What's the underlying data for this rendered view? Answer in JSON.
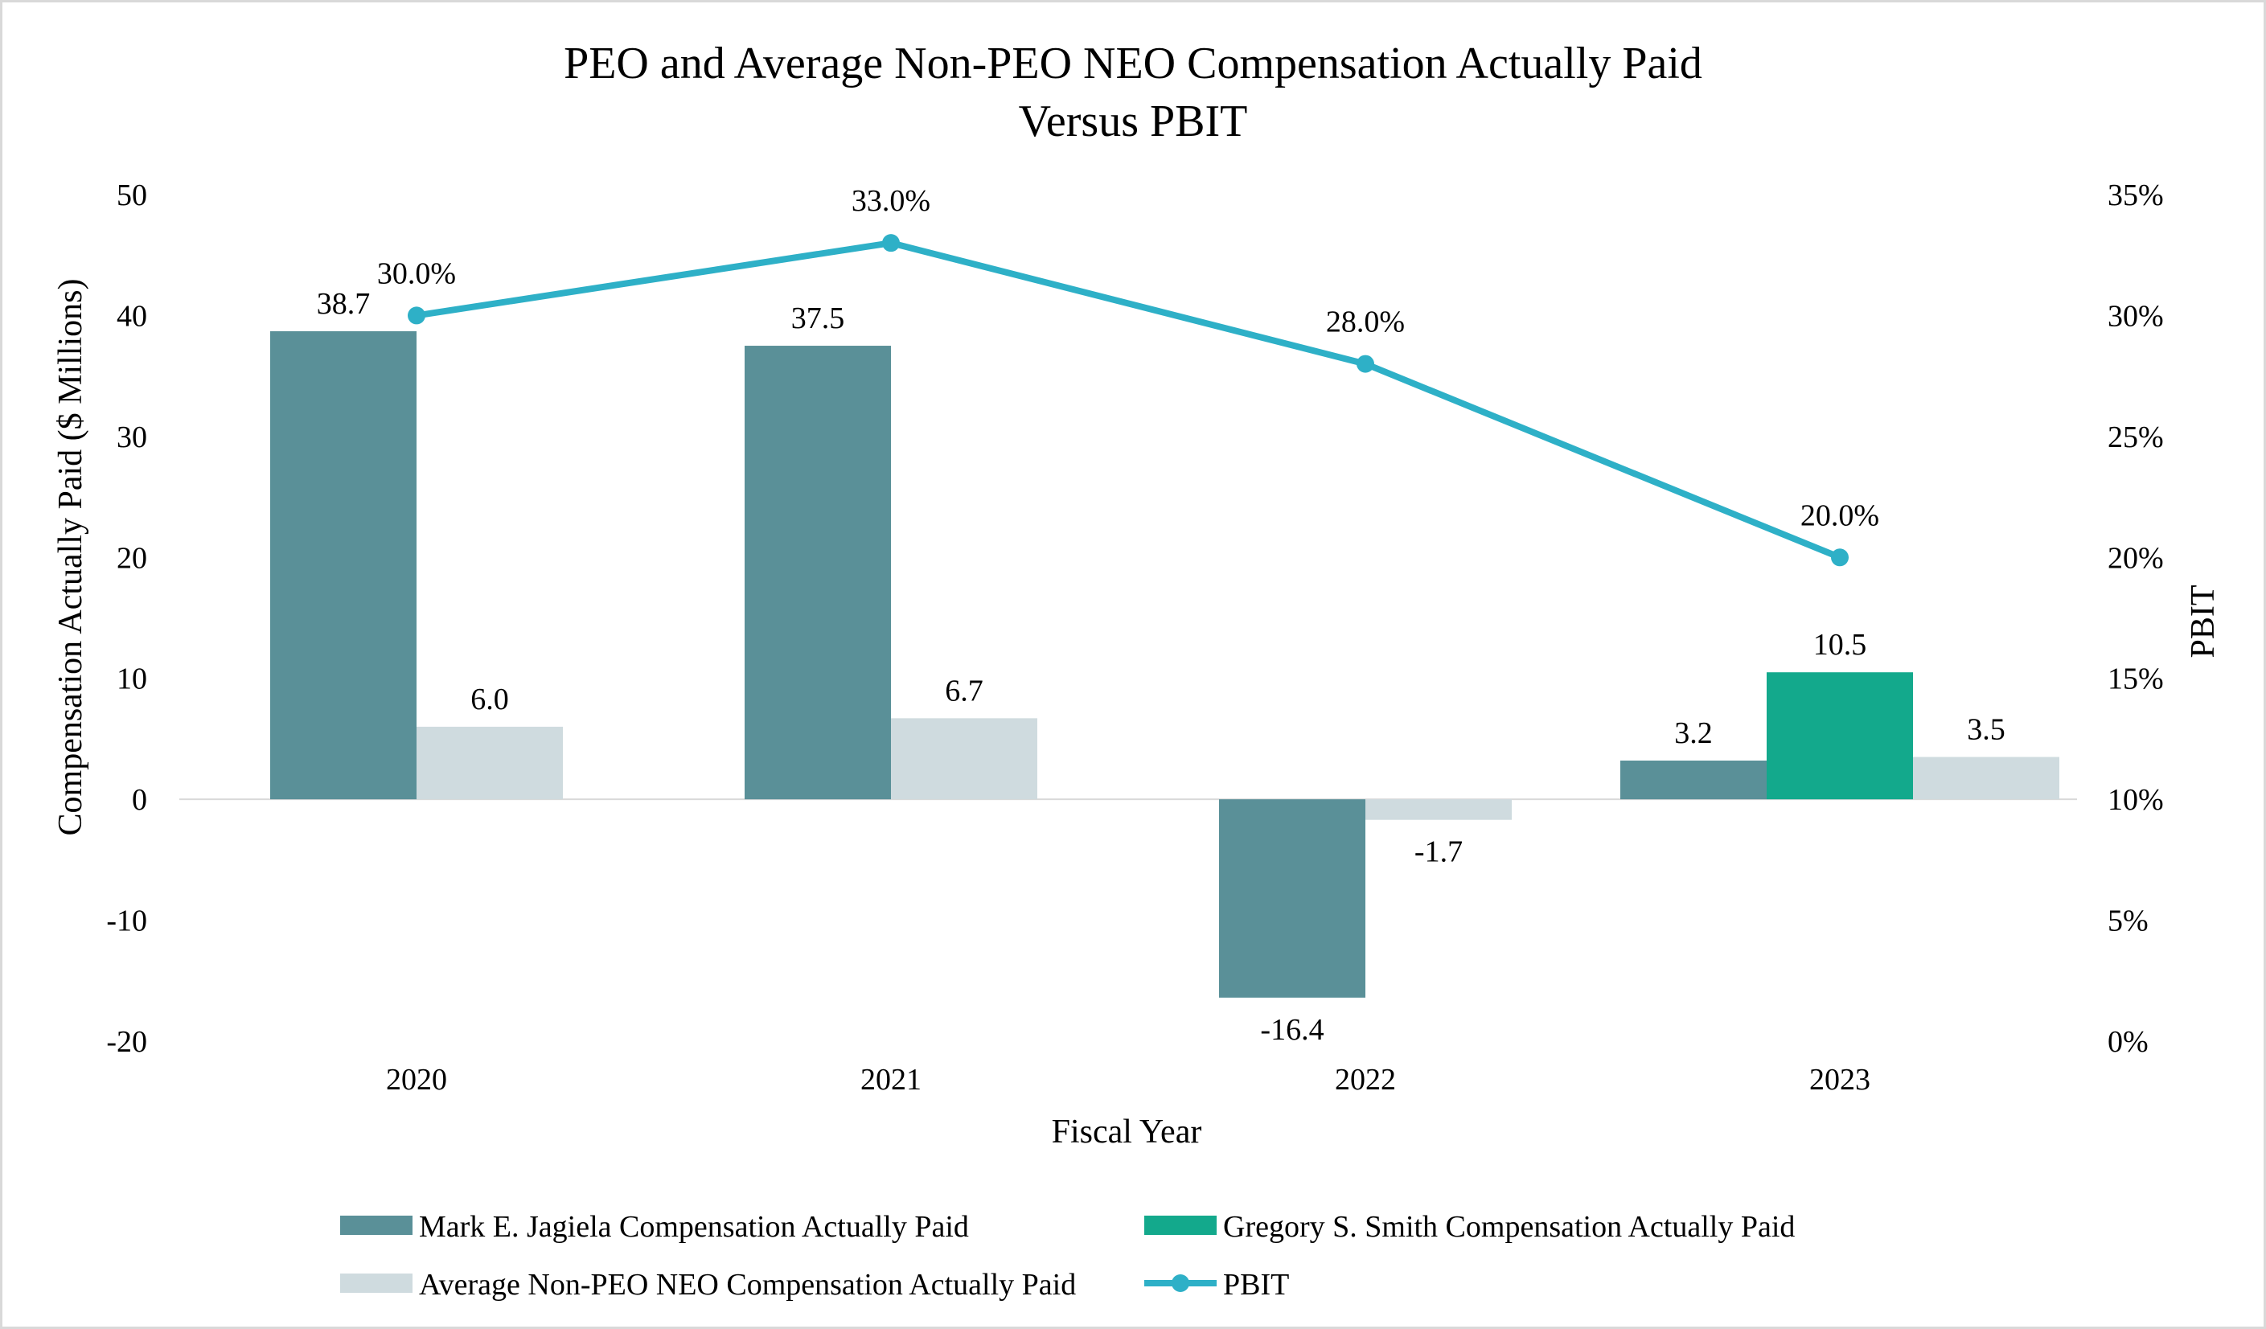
{
  "chart_data": {
    "type": "bar",
    "title": [
      "PEO and Average Non-PEO NEO Compensation Actually Paid",
      "Versus PBIT"
    ],
    "xlabel": "Fiscal Year",
    "ylabel": "Compensation Actually Paid ($ Millions)",
    "y2label": "PBIT",
    "categories": [
      "2020",
      "2021",
      "2022",
      "2023"
    ],
    "ylim": [
      -20,
      50
    ],
    "yticks": [
      -20,
      -10,
      0,
      10,
      20,
      30,
      40,
      50
    ],
    "ytick_labels": [
      "-20",
      "-10",
      "0",
      "10",
      "20",
      "30",
      "40",
      "50"
    ],
    "y2lim": [
      0,
      35
    ],
    "y2ticks": [
      0,
      5,
      10,
      15,
      20,
      25,
      30,
      35
    ],
    "y2tick_labels": [
      "0%",
      "5%",
      "10%",
      "15%",
      "20%",
      "25%",
      "30%",
      "35%"
    ],
    "grid": false,
    "legend_position": "bottom",
    "bar_series": [
      {
        "name": "Mark E. Jagiela Compensation Actually Paid",
        "color": "#5a9098",
        "values": [
          38.7,
          37.5,
          -16.4,
          3.2
        ],
        "labels": [
          "38.7",
          "37.5",
          "-16.4",
          "3.2"
        ]
      },
      {
        "name": "Gregory S. Smith Compensation Actually Paid",
        "color": "#13a98c",
        "values": [
          null,
          null,
          null,
          10.5
        ],
        "labels": [
          "",
          "",
          "",
          "10.5"
        ]
      },
      {
        "name": "Average Non-PEO NEO Compensation Actually Paid",
        "color": "#cfdbdf",
        "values": [
          6.0,
          6.7,
          -1.7,
          3.5
        ],
        "labels": [
          "6.0",
          "6.7",
          "-1.7",
          "3.5"
        ]
      }
    ],
    "line_series": {
      "name": "PBIT",
      "color": "#2eb0c7",
      "axis": "right",
      "values": [
        30.0,
        33.0,
        28.0,
        20.0
      ],
      "labels": [
        "30.0%",
        "33.0%",
        "28.0%",
        "20.0%"
      ]
    }
  }
}
